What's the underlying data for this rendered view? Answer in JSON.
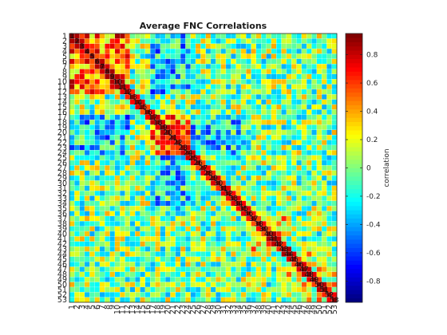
{
  "chart_data": {
    "type": "heatmap",
    "title": "Average FNC Correlations",
    "n": 53,
    "row_labels": [
      "1",
      "2",
      "3",
      "4",
      "5",
      "6",
      "7",
      "8",
      "9",
      "10",
      "11",
      "12",
      "13",
      "14",
      "15",
      "16",
      "17",
      "18",
      "19",
      "20",
      "21",
      "22",
      "23",
      "24",
      "25",
      "26",
      "27",
      "28",
      "29",
      "30",
      "31",
      "32",
      "33",
      "34",
      "35",
      "36",
      "37",
      "38",
      "39",
      "40",
      "41",
      "42",
      "43",
      "44",
      "45",
      "46",
      "47",
      "48",
      "49",
      "50",
      "51",
      "52",
      "53"
    ],
    "col_labels": [
      "1",
      "2",
      "3",
      "4",
      "5",
      "6",
      "7",
      "8",
      "9",
      "10",
      "11",
      "12",
      "13",
      "14",
      "15",
      "16",
      "17",
      "18",
      "19",
      "20",
      "21",
      "22",
      "23",
      "24",
      "25",
      "26",
      "27",
      "28",
      "29",
      "30",
      "31",
      "32",
      "33",
      "34",
      "35",
      "36",
      "37",
      "38",
      "39",
      "40",
      "41",
      "42",
      "43",
      "44",
      "45",
      "46",
      "47",
      "48",
      "49",
      "50",
      "51",
      "52",
      "53"
    ],
    "diagonal_labels": [
      "1",
      "2",
      "3",
      "4",
      "5",
      "6",
      "7",
      "8",
      "9",
      "10",
      "11",
      "12",
      "13",
      "14",
      "15",
      "16",
      "17",
      "18",
      "19",
      "20",
      "21",
      "22",
      "23",
      "24",
      "25",
      "26",
      "27",
      "28",
      "29",
      "30",
      "31",
      "32",
      "33",
      "34",
      "35",
      "36",
      "37",
      "38",
      "39",
      "40",
      "41",
      "42",
      "43",
      "44",
      "45",
      "46",
      "47",
      "48",
      "49",
      "50",
      "51",
      "52",
      "53"
    ],
    "value_range": [
      -0.95,
      0.95
    ],
    "colormap": "jet",
    "colorbar": {
      "label": "correlation",
      "ticks": [
        -0.8,
        -0.6,
        -0.4,
        -0.2,
        0,
        0.2,
        0.4,
        0.6,
        0.8
      ],
      "tick_labels": [
        "-0.8",
        "-0.6",
        "-0.4",
        "-0.2",
        "0",
        "0.2",
        "0.4",
        "0.6",
        "0.8"
      ]
    },
    "blocks": [
      {
        "rows": [
          1,
          12
        ],
        "value": 0.5
      },
      {
        "rows": [
          17,
          24
        ],
        "value": 0.45
      },
      {
        "rows": [
          37,
          43
        ],
        "value": 0.35
      },
      {
        "rows": [
          44,
          53
        ],
        "value": 0.2
      }
    ],
    "cross_blocks": [
      {
        "rows": [
          1,
          12
        ],
        "cols": [
          17,
          24
        ],
        "value": -0.3
      },
      {
        "rows": [
          17,
          24
        ],
        "cols": [
          25,
          36
        ],
        "value": -0.25
      }
    ],
    "diagonal_value": 1,
    "seed": 7
  }
}
